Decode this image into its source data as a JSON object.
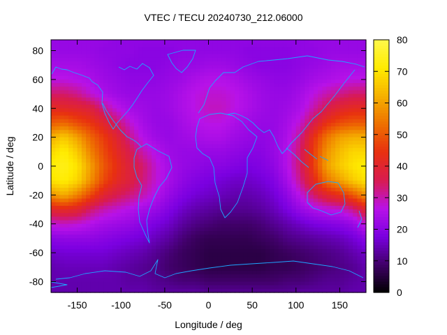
{
  "chart_data": {
    "type": "heatmap",
    "title": "VTEC / TECU 20240730_212.06000",
    "xlabel": "Longitude / deg",
    "ylabel": "Latitude / deg",
    "xlim": [
      -180,
      180
    ],
    "ylim": [
      -87.5,
      87.5
    ],
    "x_ticks": [
      -150,
      -100,
      -50,
      0,
      50,
      100,
      150
    ],
    "y_ticks": [
      -80,
      -60,
      -40,
      -20,
      0,
      20,
      40,
      60,
      80
    ],
    "colorbar": {
      "range": [
        0,
        80
      ],
      "ticks": [
        0,
        10,
        20,
        30,
        40,
        50,
        60,
        70,
        80
      ],
      "palette": [
        "#000000",
        "#400068",
        "#7a00e0",
        "#b812e8",
        "#d81b50",
        "#e83010",
        "#ee7000",
        "#f5b000",
        "#ffeb00",
        "#fff84a"
      ]
    },
    "grid": false,
    "overlay": "coastlines",
    "coastline_color": "#1ea7ff",
    "z_lat": [
      87.5,
      80,
      70,
      60,
      50,
      40,
      30,
      20,
      10,
      0,
      -10,
      -20,
      -30,
      -40,
      -50,
      -60,
      -70,
      -80,
      -87.5
    ],
    "z_lon": [
      -180,
      -165,
      -150,
      -135,
      -120,
      -105,
      -90,
      -75,
      -60,
      -45,
      -30,
      -15,
      0,
      15,
      30,
      45,
      60,
      75,
      90,
      105,
      120,
      135,
      150,
      165,
      180
    ],
    "z_values": [
      [
        22,
        22,
        22,
        22,
        22,
        21,
        21,
        21,
        21,
        21,
        21,
        21,
        21,
        21,
        21,
        21,
        21,
        21,
        21,
        21,
        22,
        22,
        22,
        22,
        22
      ],
      [
        22,
        22,
        22,
        22,
        21,
        21,
        21,
        20,
        20,
        20,
        21,
        21,
        21,
        21,
        21,
        20,
        20,
        20,
        20,
        21,
        21,
        22,
        22,
        22,
        22
      ],
      [
        24,
        24,
        24,
        23,
        22,
        21,
        20,
        20,
        20,
        21,
        22,
        22,
        23,
        23,
        22,
        21,
        20,
        20,
        20,
        21,
        22,
        23,
        24,
        24,
        24
      ],
      [
        27,
        27,
        26,
        25,
        23,
        22,
        21,
        21,
        21,
        22,
        23,
        25,
        26,
        26,
        25,
        23,
        22,
        21,
        21,
        22,
        24,
        25,
        26,
        27,
        27
      ],
      [
        34,
        34,
        32,
        28,
        25,
        23,
        22,
        22,
        22,
        23,
        25,
        27,
        28,
        28,
        27,
        25,
        23,
        22,
        22,
        24,
        27,
        30,
        32,
        34,
        34
      ],
      [
        42,
        41,
        40,
        38,
        32,
        27,
        24,
        23,
        22,
        23,
        25,
        27,
        29,
        29,
        27,
        25,
        23,
        22,
        23,
        25,
        30,
        36,
        40,
        42,
        42
      ],
      [
        50,
        52,
        48,
        45,
        40,
        34,
        28,
        24,
        22,
        22,
        24,
        26,
        27,
        27,
        25,
        23,
        22,
        22,
        24,
        28,
        36,
        44,
        48,
        50,
        50
      ],
      [
        62,
        66,
        60,
        52,
        46,
        40,
        32,
        26,
        23,
        22,
        23,
        24,
        25,
        25,
        23,
        22,
        21,
        22,
        25,
        32,
        44,
        54,
        60,
        62,
        62
      ],
      [
        68,
        72,
        66,
        56,
        48,
        42,
        36,
        30,
        26,
        23,
        22,
        22,
        22,
        22,
        21,
        20,
        20,
        22,
        26,
        34,
        46,
        58,
        64,
        68,
        68
      ],
      [
        72,
        74,
        70,
        60,
        50,
        44,
        38,
        34,
        28,
        24,
        22,
        21,
        20,
        20,
        19,
        18,
        19,
        21,
        26,
        34,
        46,
        60,
        66,
        70,
        72
      ],
      [
        70,
        72,
        68,
        58,
        48,
        42,
        38,
        33,
        28,
        24,
        21,
        19,
        18,
        17,
        16,
        16,
        17,
        19,
        24,
        32,
        42,
        54,
        60,
        66,
        70
      ],
      [
        58,
        62,
        56,
        48,
        40,
        36,
        33,
        30,
        26,
        22,
        19,
        17,
        16,
        15,
        14,
        14,
        15,
        17,
        21,
        27,
        34,
        40,
        44,
        50,
        58
      ],
      [
        40,
        42,
        40,
        34,
        30,
        28,
        26,
        24,
        22,
        19,
        16,
        14,
        13,
        12,
        12,
        12,
        13,
        15,
        18,
        22,
        25,
        27,
        28,
        32,
        40
      ],
      [
        28,
        29,
        28,
        26,
        24,
        23,
        22,
        20,
        18,
        16,
        13,
        11,
        10,
        9,
        9,
        9,
        10,
        12,
        14,
        16,
        18,
        19,
        20,
        22,
        28
      ],
      [
        20,
        21,
        21,
        21,
        20,
        19,
        18,
        17,
        15,
        13,
        10,
        8,
        7,
        7,
        7,
        7,
        8,
        9,
        11,
        12,
        13,
        14,
        15,
        17,
        20
      ],
      [
        16,
        17,
        17,
        17,
        17,
        16,
        15,
        14,
        12,
        10,
        8,
        7,
        6,
        6,
        6,
        6,
        6,
        7,
        8,
        9,
        10,
        11,
        12,
        14,
        16
      ],
      [
        14,
        15,
        15,
        15,
        15,
        14,
        13,
        12,
        11,
        9,
        8,
        7,
        6,
        6,
        6,
        6,
        6,
        7,
        7,
        8,
        9,
        10,
        11,
        12,
        14
      ],
      [
        14,
        14,
        14,
        14,
        14,
        14,
        13,
        13,
        12,
        11,
        10,
        10,
        9,
        9,
        9,
        9,
        9,
        9,
        10,
        10,
        11,
        12,
        12,
        13,
        14
      ],
      [
        14,
        14,
        14,
        14,
        14,
        14,
        14,
        14,
        13,
        13,
        13,
        13,
        12,
        12,
        12,
        12,
        12,
        12,
        12,
        13,
        13,
        13,
        13,
        14,
        14
      ]
    ]
  }
}
